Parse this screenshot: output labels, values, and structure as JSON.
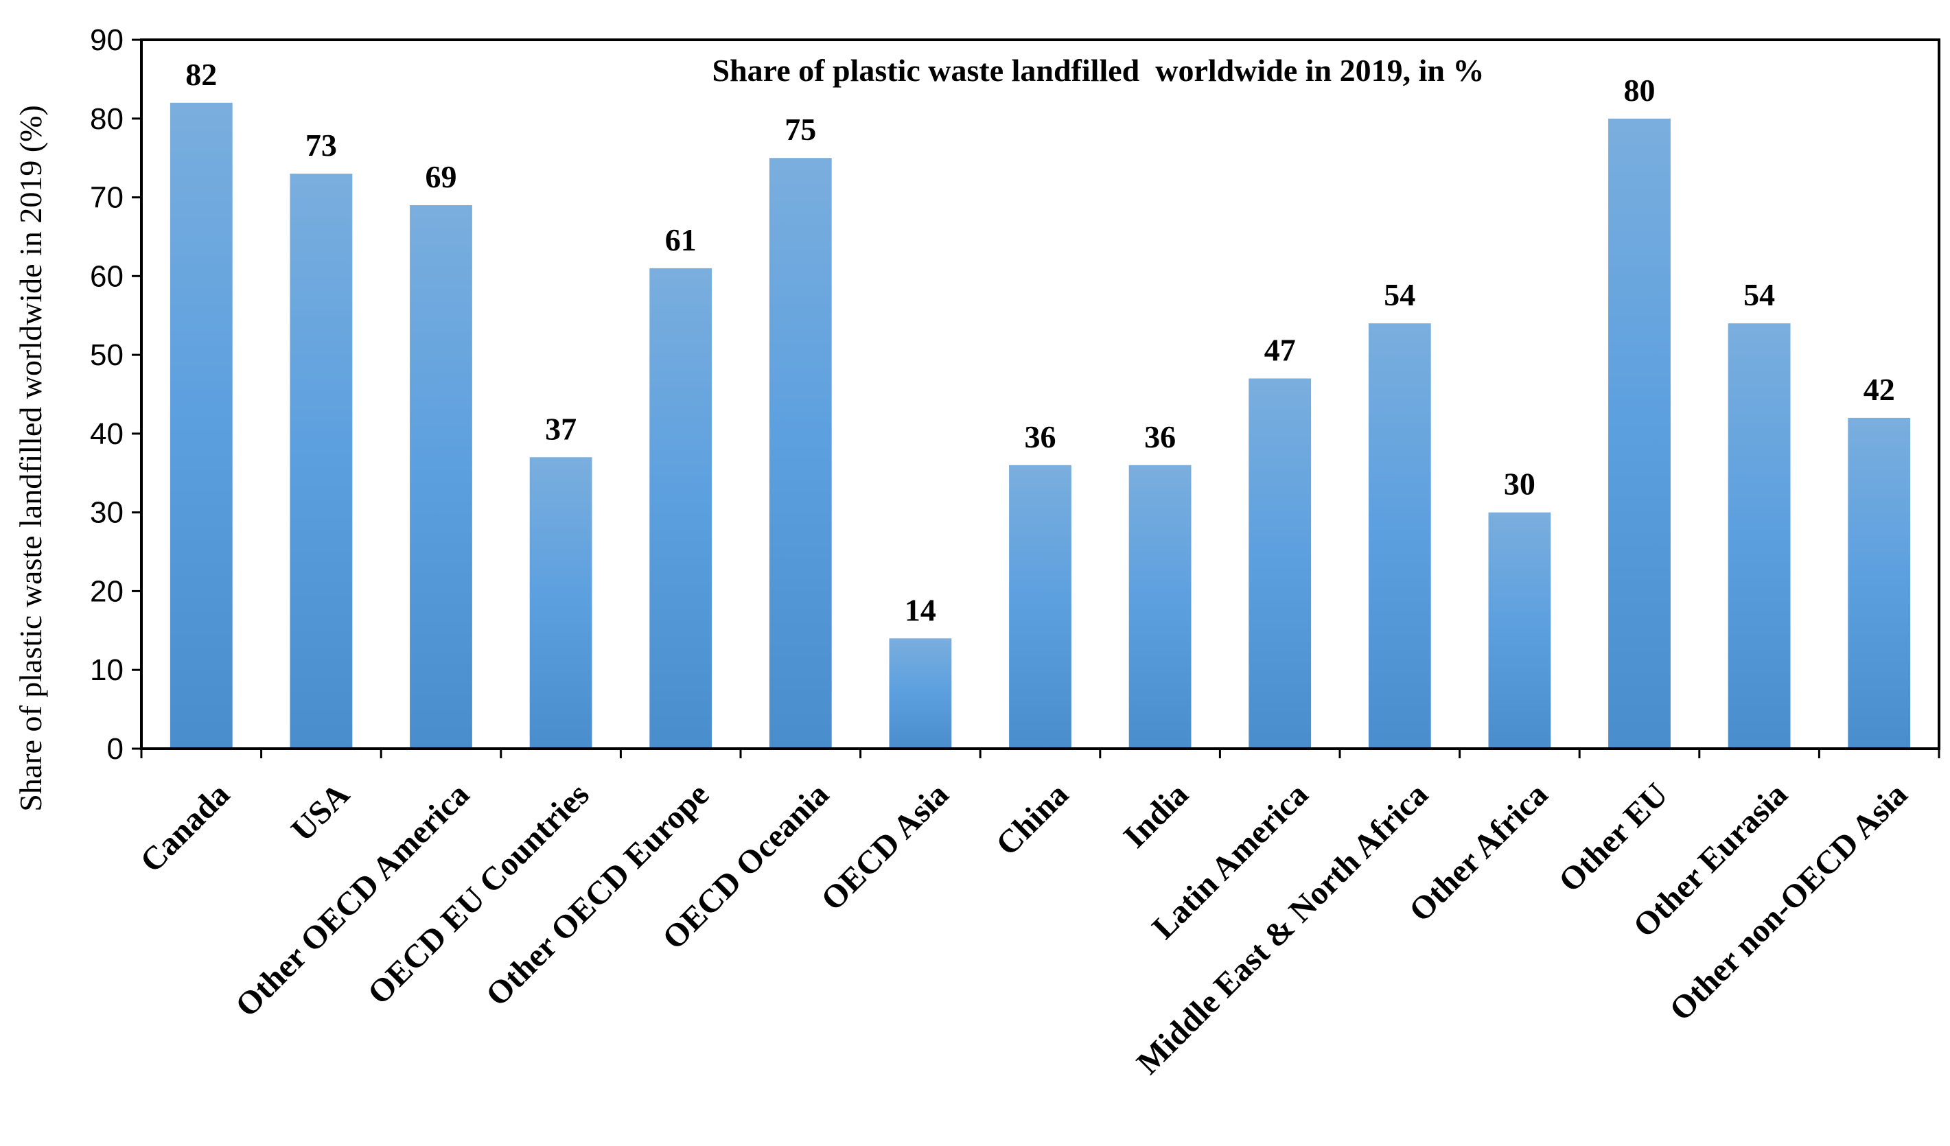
{
  "chart_data": {
    "type": "bar",
    "title": "Share of plastic waste landfilled  worldwide in 2019, in %",
    "xlabel": "",
    "ylabel": "Share of plastic waste landfilled worldwide in 2019 (%)",
    "ylim": [
      0,
      90
    ],
    "ytick_step": 10,
    "yticks": [
      "0",
      "10",
      "20",
      "30",
      "40",
      "50",
      "60",
      "70",
      "80",
      "90"
    ],
    "grid": false,
    "legend": "none",
    "bar_color": "#5b9bd5",
    "categories": [
      "Canada",
      "USA",
      "Other OECD America",
      "OECD EU Countries",
      "Other OECD Europe",
      "OECD Oceania",
      "OECD Asia",
      "China",
      "India",
      "Latin America",
      "Middle East & North Africa",
      "Other Africa",
      "Other EU",
      "Other Eurasia",
      "Other non-OECD Asia"
    ],
    "values": [
      82,
      73,
      69,
      37,
      61,
      75,
      14,
      36,
      36,
      47,
      54,
      30,
      80,
      54,
      42
    ],
    "value_labels": [
      "82",
      "73",
      "69",
      "37",
      "61",
      "75",
      "14",
      "36",
      "36",
      "47",
      "54",
      "30",
      "80",
      "54",
      "42"
    ]
  }
}
